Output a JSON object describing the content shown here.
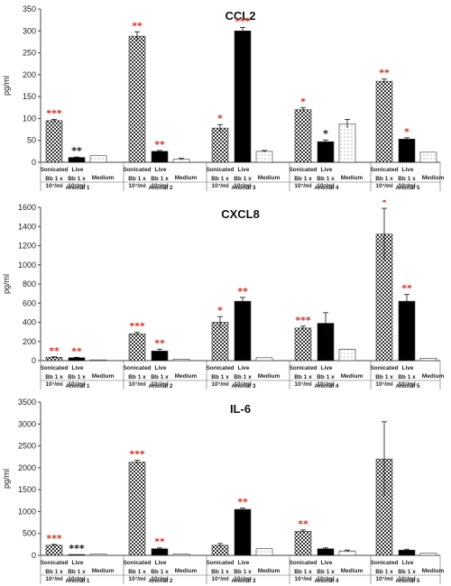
{
  "colors": {
    "sig_red": "#c0392b",
    "sig_black": "#111111",
    "live_bar": "#000000"
  },
  "chart_data": [
    {
      "type": "bar",
      "title": "CCL2",
      "ylabel": "pg/ml",
      "ylim": [
        0,
        350
      ],
      "yticks": [
        0,
        50,
        100,
        150,
        200,
        250,
        300,
        350
      ],
      "groups": [
        "Animal 1",
        "Animal 2",
        "Animal 3",
        "Animal 4",
        "Animal 5"
      ],
      "condition_labels": [
        "Sonicated",
        "Live",
        "Medium"
      ],
      "dose_label": [
        "Bb 1 x",
        "10^7/ml"
      ],
      "series": [
        {
          "values": [
            95,
            288,
            78,
            120,
            185
          ],
          "errors": [
            3,
            10,
            8,
            5,
            5
          ],
          "stars": [
            "***",
            "**",
            "*",
            "*",
            "**"
          ],
          "star_colors": [
            "red",
            "red",
            "red",
            "red",
            "red"
          ],
          "pattern": "check"
        },
        {
          "values": [
            11,
            25,
            300,
            47,
            53
          ],
          "errors": [
            1,
            2,
            8,
            4,
            3
          ],
          "stars": [
            "**",
            "**",
            "***",
            "*",
            "*"
          ],
          "star_colors": [
            "black",
            "red",
            "red",
            "black",
            "red"
          ],
          "pattern": "solid"
        },
        {
          "values": [
            15,
            7,
            25,
            88,
            23
          ],
          "errors": [
            0,
            2,
            2,
            10,
            0
          ],
          "stars": [
            "",
            "",
            "",
            "",
            ""
          ],
          "star_colors": [
            "",
            "",
            "",
            "",
            ""
          ],
          "pattern": "dots"
        }
      ]
    },
    {
      "type": "bar",
      "title": "CXCL8",
      "ylabel": "pg/ml",
      "ylim": [
        0,
        1600
      ],
      "yticks": [
        0,
        200,
        400,
        600,
        800,
        1000,
        1200,
        1400,
        1600
      ],
      "groups": [
        "Animal 1",
        "Animal 2",
        "Animal 3",
        "Animal 4",
        "Animal 5"
      ],
      "condition_labels": [
        "Sonicated",
        "Live",
        "Medium"
      ],
      "dose_label": [
        "Bb 1 x",
        "10^7/ml"
      ],
      "series": [
        {
          "values": [
            35,
            280,
            400,
            340,
            1320
          ],
          "errors": [
            5,
            15,
            60,
            20,
            270
          ],
          "stars": [
            "**",
            "***",
            "*",
            "***",
            "*"
          ],
          "star_colors": [
            "red",
            "red",
            "red",
            "red",
            "red"
          ],
          "pattern": "check"
        },
        {
          "values": [
            30,
            100,
            620,
            390,
            620
          ],
          "errors": [
            5,
            20,
            40,
            110,
            70
          ],
          "stars": [
            "**",
            "**",
            "**",
            "",
            "**"
          ],
          "star_colors": [
            "red",
            "red",
            "red",
            "",
            "red"
          ],
          "pattern": "solid"
        },
        {
          "values": [
            8,
            15,
            30,
            120,
            25
          ],
          "errors": [
            0,
            0,
            0,
            0,
            0
          ],
          "stars": [
            "",
            "",
            "",
            "",
            ""
          ],
          "star_colors": [
            "",
            "",
            "",
            "",
            ""
          ],
          "pattern": "dots"
        }
      ]
    },
    {
      "type": "bar",
      "title": "IL-6",
      "ylabel": "pg/ml",
      "ylim": [
        0,
        3500
      ],
      "yticks": [
        0,
        500,
        1000,
        1500,
        2000,
        2500,
        3000,
        3500
      ],
      "groups": [
        "Animal 1",
        "Animal 2",
        "Animal 3",
        "Animal 4",
        "Animal 5"
      ],
      "condition_labels": [
        "Sonicated",
        "Live",
        "Medium"
      ],
      "dose_label": [
        "Bb 1 x",
        "10^7/ml"
      ],
      "series": [
        {
          "values": [
            230,
            2130,
            230,
            550,
            2200
          ],
          "errors": [
            20,
            40,
            40,
            30,
            850
          ],
          "stars": [
            "***",
            "***",
            "",
            "**",
            ""
          ],
          "star_colors": [
            "red",
            "red",
            "",
            "red",
            ""
          ],
          "pattern": "check"
        },
        {
          "values": [
            20,
            150,
            1050,
            150,
            120
          ],
          "errors": [
            0,
            20,
            30,
            20,
            20
          ],
          "stars": [
            "***",
            "**",
            "**",
            "",
            ""
          ],
          "star_colors": [
            "black",
            "red",
            "red",
            "",
            ""
          ],
          "pattern": "solid"
        },
        {
          "values": [
            30,
            30,
            150,
            100,
            50
          ],
          "errors": [
            0,
            0,
            0,
            20,
            0
          ],
          "stars": [
            "",
            "",
            "",
            "",
            ""
          ],
          "star_colors": [
            "",
            "",
            "",
            "",
            ""
          ],
          "pattern": "dots"
        }
      ]
    }
  ]
}
